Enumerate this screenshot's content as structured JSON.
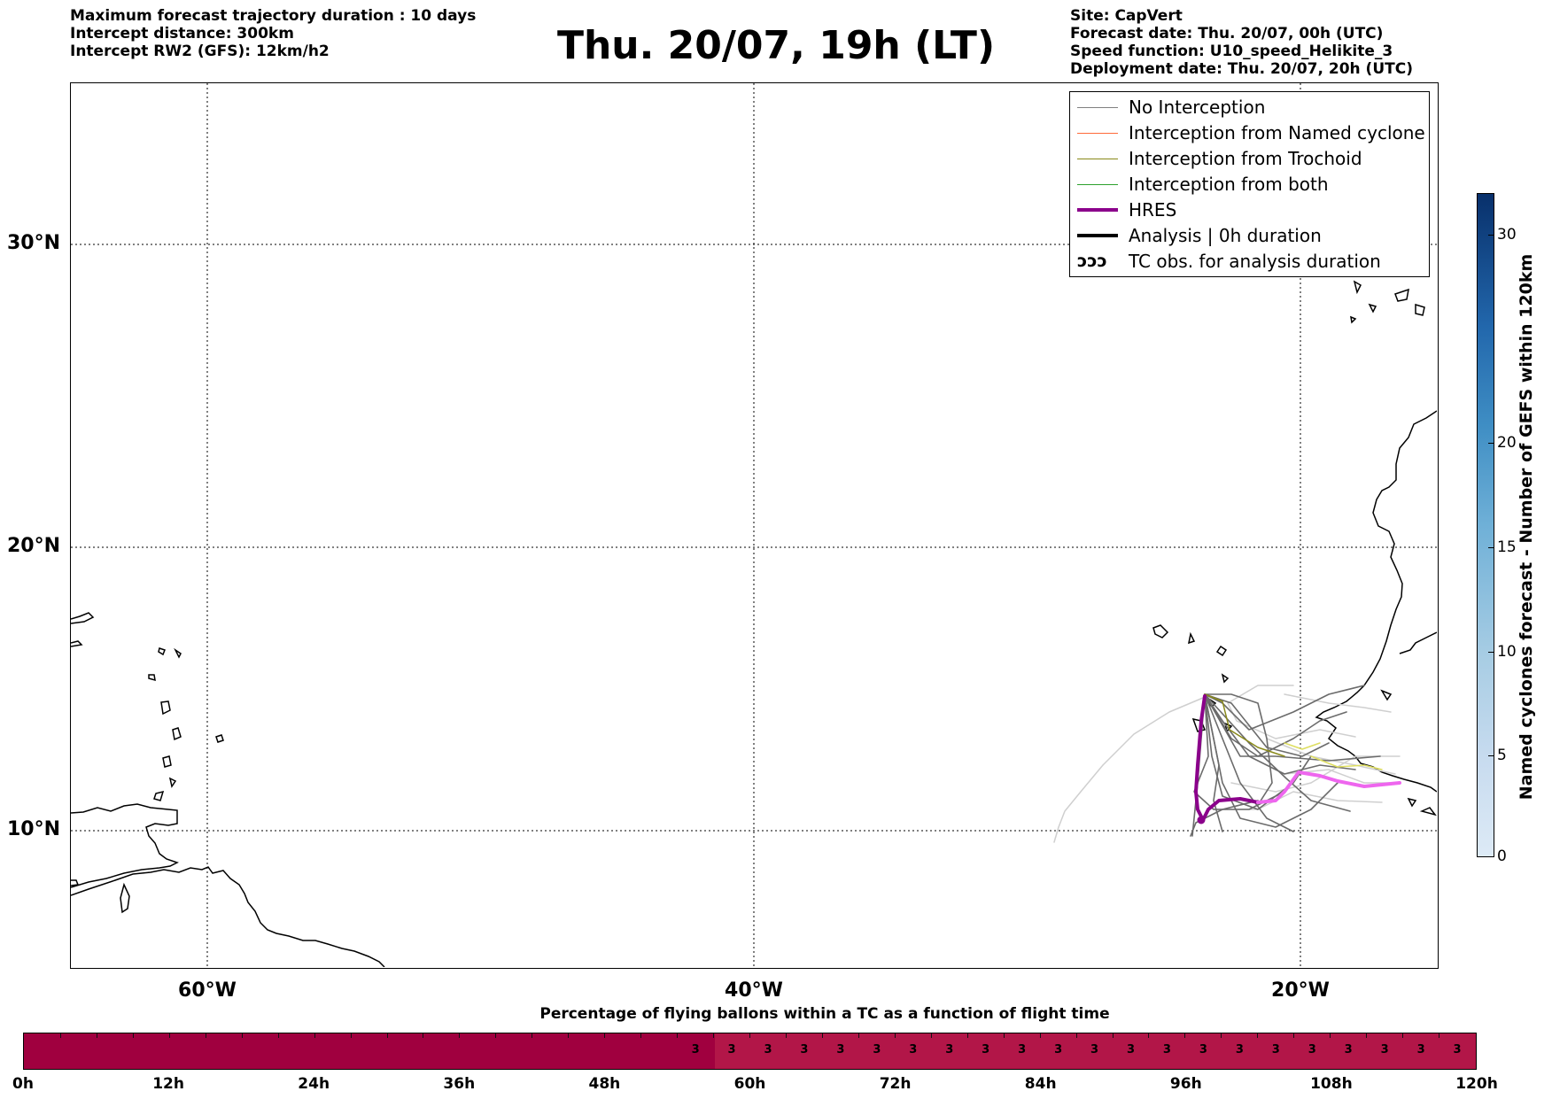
{
  "header_left": {
    "line1": "Maximum forecast trajectory duration : 10 days",
    "line2": "Intercept distance: 300km",
    "line3": "Intercept RW2 (GFS):  12km/h2"
  },
  "title": "Thu. 20/07, 19h (LT)",
  "header_right": {
    "site": "Site: CapVert",
    "forecast_date": "Forecast date: Thu. 20/07, 00h (UTC)",
    "speed_function": "Speed function: U10_speed_Helikite_3",
    "deployment_date": "Deployment date: Thu. 20/07, 20h (UTC)"
  },
  "map": {
    "lat_labels": [
      "30°N",
      "20°N",
      "10°N"
    ],
    "lon_labels": [
      "60°W",
      "40°W",
      "20°W"
    ]
  },
  "legend": [
    {
      "label": "No Interception",
      "color": "#808080",
      "width": 1.5
    },
    {
      "label": "Interception from Named cyclone",
      "color": "#ff6a3a",
      "width": 1.5
    },
    {
      "label": "Interception from Trochoid",
      "color": "#8a8a1a",
      "width": 1.5
    },
    {
      "label": "Interception from both",
      "color": "#2ca02c",
      "width": 1.5
    },
    {
      "label": "HRES",
      "color": "#8b008b",
      "width": 4
    },
    {
      "label": "Analysis | 0h duration",
      "color": "#000000",
      "width": 4
    },
    {
      "label": "TC obs. for analysis duration",
      "symbol": "ↄↄↄ"
    }
  ],
  "colorbar": {
    "label": "Named cyclones forecast - Number of GEFS within 120km",
    "ticks": [
      "0",
      "5",
      "10",
      "15",
      "20",
      "30"
    ]
  },
  "bottom": {
    "title": "Percentage of flying ballons within a TC as a function of flight time",
    "time_labels": [
      "0h",
      "12h",
      "24h",
      "36h",
      "48h",
      "60h",
      "72h",
      "84h",
      "96h",
      "108h",
      "120h"
    ],
    "cell_values": [
      "3",
      "3",
      "3",
      "3",
      "3",
      "3",
      "3",
      "3",
      "3",
      "3",
      "3",
      "3",
      "3",
      "3",
      "3",
      "3",
      "3",
      "3",
      "3",
      "3",
      "3",
      "3"
    ]
  }
}
